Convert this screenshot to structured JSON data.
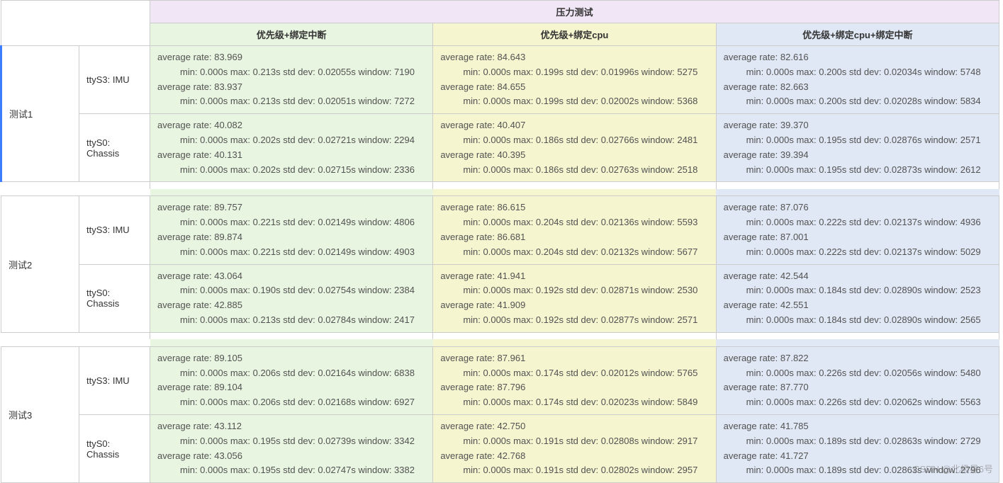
{
  "colors": {
    "border": "#cccccc",
    "header_top_bg": "#f0e6f5",
    "green_bg": "#e8f5e0",
    "yellow_bg": "#f5f5d0",
    "blue_bg": "#e0e8f5",
    "leftbar": "#3d7eff",
    "text": "#333333",
    "cell_text": "#525252"
  },
  "header": {
    "top": "压力测试",
    "cols": [
      "优先级+绑定中断",
      "优先级+绑定cpu",
      "优先级+绑定cpu+绑定中断"
    ]
  },
  "row_labels": {
    "imu": "ttyS3: IMU",
    "chassis": "ttyS0: Chassis"
  },
  "watermark": "CSDN @北极星6号",
  "tests": [
    {
      "name": "测试1",
      "imu": [
        {
          "rate1": "83.969",
          "stat1": "min: 0.000s max: 0.213s std dev: 0.02055s window: 7190",
          "rate2": "83.937",
          "stat2": "min: 0.000s max: 0.213s std dev: 0.02051s window: 7272"
        },
        {
          "rate1": "84.643",
          "stat1": "min: 0.000s max: 0.199s std dev: 0.01996s window: 5275",
          "rate2": "84.655",
          "stat2": "min: 0.000s max: 0.199s std dev: 0.02002s window: 5368"
        },
        {
          "rate1": "82.616",
          "stat1": "min: 0.000s max: 0.200s std dev: 0.02034s window: 5748",
          "rate2": "82.663",
          "stat2": "min: 0.000s max: 0.200s std dev: 0.02028s window: 5834"
        }
      ],
      "chassis": [
        {
          "rate1": "40.082",
          "stat1": "min: 0.000s max: 0.202s std dev: 0.02721s window: 2294",
          "rate2": "40.131",
          "stat2": "min: 0.000s max: 0.202s std dev: 0.02715s window: 2336"
        },
        {
          "rate1": "40.407",
          "stat1": "min: 0.000s max: 0.186s std dev: 0.02766s window: 2481",
          "rate2": "40.395",
          "stat2": "min: 0.000s max: 0.186s std dev: 0.02763s window: 2518"
        },
        {
          "rate1": "39.370",
          "stat1": "min: 0.000s max: 0.195s std dev: 0.02876s window: 2571",
          "rate2": "39.394",
          "stat2": "min: 0.000s max: 0.195s std dev: 0.02873s window: 2612"
        }
      ]
    },
    {
      "name": "测试2",
      "imu": [
        {
          "rate1": "89.757",
          "stat1": "min: 0.000s max: 0.221s std dev: 0.02149s window: 4806",
          "rate2": "89.874",
          "stat2": "min: 0.000s max: 0.221s std dev: 0.02149s window: 4903"
        },
        {
          "rate1": "86.615",
          "stat1": "min: 0.000s max: 0.204s std dev: 0.02136s window: 5593",
          "rate2": "86.681",
          "stat2": "min: 0.000s max: 0.204s std dev: 0.02132s window: 5677"
        },
        {
          "rate1": "87.076",
          "stat1": "min: 0.000s max: 0.222s std dev: 0.02137s window: 4936",
          "rate2": "87.001",
          "stat2": "min: 0.000s max: 0.222s std dev: 0.02137s window: 5029"
        }
      ],
      "chassis": [
        {
          "rate1": "43.064",
          "stat1": "min: 0.000s max: 0.190s std dev: 0.02754s window: 2384",
          "rate2": "42.885",
          "stat2": "min: 0.000s max: 0.213s std dev: 0.02784s window: 2417"
        },
        {
          "rate1": "41.941",
          "stat1": "min: 0.000s max: 0.192s std dev: 0.02871s window: 2530",
          "rate2": "41.909",
          "stat2": "min: 0.000s max: 0.192s std dev: 0.02877s window: 2571"
        },
        {
          "rate1": "42.544",
          "stat1": "min: 0.000s max: 0.184s std dev: 0.02890s window: 2523",
          "rate2": "42.551",
          "stat2": "min: 0.000s max: 0.184s std dev: 0.02890s window: 2565"
        }
      ]
    },
    {
      "name": "测试3",
      "imu": [
        {
          "rate1": "89.105",
          "stat1": "min: 0.000s max: 0.206s std dev: 0.02164s window: 6838",
          "rate2": "89.104",
          "stat2": "min: 0.000s max: 0.206s std dev: 0.02168s window: 6927"
        },
        {
          "rate1": "87.961",
          "stat1": "min: 0.000s max: 0.174s std dev: 0.02012s window: 5765",
          "rate2": "87.796",
          "stat2": "min: 0.000s max: 0.174s std dev: 0.02023s window: 5849"
        },
        {
          "rate1": "87.822",
          "stat1": "min: 0.000s max: 0.226s std dev: 0.02056s window: 5480",
          "rate2": "87.770",
          "stat2": "min: 0.000s max: 0.226s std dev: 0.02062s window: 5563"
        }
      ],
      "chassis": [
        {
          "rate1": "43.112",
          "stat1": "min: 0.000s max: 0.195s std dev: 0.02739s window: 3342",
          "rate2": "43.056",
          "stat2": "min: 0.000s max: 0.195s std dev: 0.02747s window: 3382"
        },
        {
          "rate1": "42.750",
          "stat1": "min: 0.000s max: 0.191s std dev: 0.02808s window: 2917",
          "rate2": "42.768",
          "stat2": "min: 0.000s max: 0.191s std dev: 0.02802s window: 2957"
        },
        {
          "rate1": "41.785",
          "stat1": "min: 0.000s max: 0.189s std dev: 0.02863s window: 2729",
          "rate2": "41.727",
          "stat2": "min: 0.000s max: 0.189s std dev: 0.02863s window: 2796"
        }
      ]
    }
  ]
}
